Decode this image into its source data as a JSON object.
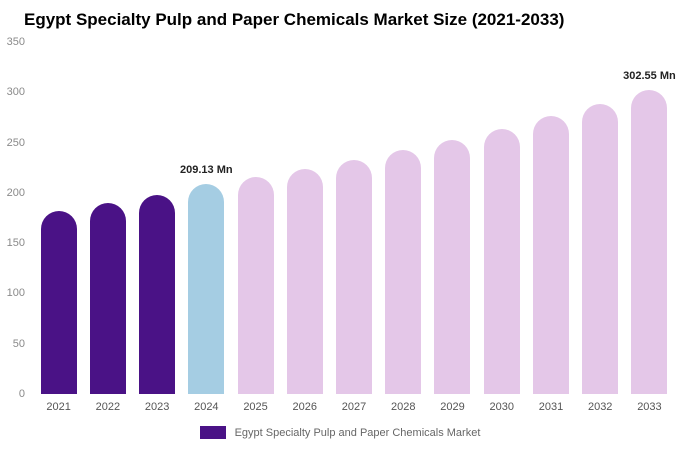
{
  "title": "Egypt Specialty Pulp and Paper Chemicals Market Size (2021-2033)",
  "chart_data": {
    "type": "bar",
    "title": "Egypt Specialty Pulp and Paper Chemicals Market Size (2021-2033)",
    "categories": [
      "2021",
      "2022",
      "2023",
      "2024",
      "2025",
      "2026",
      "2027",
      "2028",
      "2029",
      "2030",
      "2031",
      "2032",
      "2033"
    ],
    "values": [
      182,
      190,
      198,
      209.13,
      216,
      224,
      233,
      243,
      253,
      264,
      276,
      288,
      302.55
    ],
    "unit": "Mn",
    "bar_colors": [
      "#4a1286",
      "#4a1286",
      "#4a1286",
      "#a5cde3",
      "#e4c7e8",
      "#e4c7e8",
      "#e4c7e8",
      "#e4c7e8",
      "#e4c7e8",
      "#e4c7e8",
      "#e4c7e8",
      "#e4c7e8",
      "#e4c7e8"
    ],
    "series_colors": {
      "historical": "#4a1286",
      "current_year": "#a5cde3",
      "forecast": "#e4c7e8"
    },
    "annotations": [
      {
        "index": 3,
        "text": "209.13 Mn"
      },
      {
        "index": 12,
        "text": "302.55 Mn"
      }
    ],
    "ylim": [
      0,
      350
    ],
    "yticks": [
      0,
      50,
      100,
      150,
      200,
      250,
      300,
      350
    ],
    "grid": false,
    "legend": {
      "position": "bottom-center",
      "label": "Egypt Specialty Pulp and Paper Chemicals Market",
      "swatch_color": "#4a1286"
    }
  }
}
